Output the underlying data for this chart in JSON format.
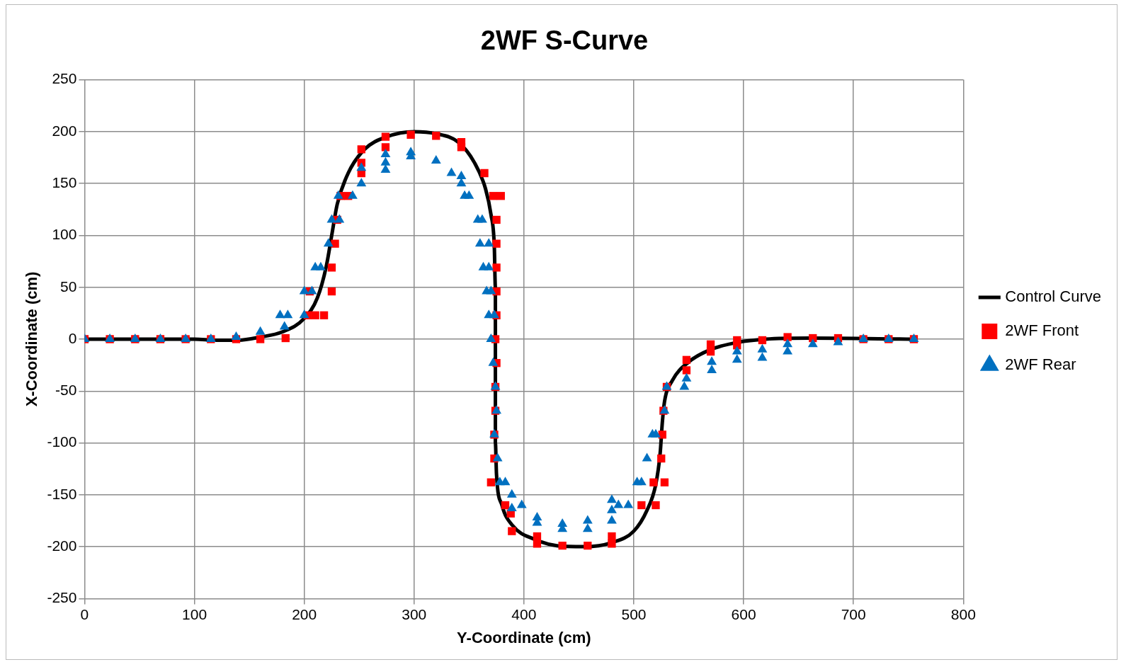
{
  "chart_data": {
    "type": "scatter",
    "title": "2WF S-Curve",
    "xlabel": "Y-Coordinate (cm)",
    "ylabel": "X-Coordinate (cm)",
    "xlim": [
      0,
      800
    ],
    "xticks": [
      0,
      100,
      200,
      300,
      400,
      500,
      600,
      700,
      800
    ],
    "ylim": [
      -250,
      250
    ],
    "yticks": [
      -250,
      -200,
      -150,
      -100,
      -50,
      0,
      50,
      100,
      150,
      200,
      250
    ],
    "grid": true,
    "legend": "right",
    "series": [
      {
        "name": "Control Curve",
        "type": "line",
        "line_style": "solid",
        "marker": "none",
        "color": "#000000",
        "x": [
          0,
          100,
          120,
          140,
          160,
          180,
          200,
          212,
          220,
          225,
          230,
          240,
          255,
          275,
          300,
          320,
          340,
          355,
          365,
          370,
          373,
          374,
          374,
          374,
          375,
          380,
          390,
          410,
          430,
          455,
          480,
          500,
          512,
          520,
          524,
          526,
          528,
          535,
          550,
          570,
          595,
          620,
          660,
          754
        ],
        "values": [
          0,
          0,
          -1,
          -1,
          2,
          7,
          20,
          40,
          70,
          100,
          130,
          160,
          183,
          195,
          200,
          198,
          190,
          170,
          145,
          120,
          90,
          50,
          0,
          -100,
          -130,
          -160,
          -180,
          -193,
          -199,
          -200,
          -196,
          -185,
          -165,
          -140,
          -110,
          -80,
          -60,
          -40,
          -22,
          -10,
          -3,
          0,
          1,
          0
        ]
      },
      {
        "name": "2WF Front",
        "type": "scatter",
        "marker": "square",
        "color": "#ff0000",
        "x": [
          0,
          23,
          46,
          69,
          92,
          115,
          138,
          160,
          183,
          203,
          210,
          218,
          205,
          225,
          225,
          228,
          230,
          233,
          240,
          252,
          252,
          252,
          274,
          274,
          297,
          320,
          343,
          343,
          364,
          372,
          379,
          375,
          375,
          375,
          375,
          375,
          374,
          375,
          374,
          374,
          373,
          373,
          370,
          383,
          388,
          389,
          412,
          412,
          435,
          458,
          480,
          480,
          507,
          520,
          518,
          528,
          525,
          526,
          527,
          530,
          548,
          548,
          570,
          570,
          594,
          594,
          617,
          640,
          663,
          686,
          709,
          732,
          755
        ],
        "values": [
          0,
          0,
          0,
          0,
          0,
          0,
          0,
          0,
          1,
          23,
          23,
          23,
          46,
          46,
          69,
          92,
          115,
          138,
          138,
          160,
          170,
          183,
          185,
          195,
          197,
          196,
          185,
          190,
          160,
          138,
          138,
          115,
          92,
          69,
          46,
          23,
          0,
          -23,
          -46,
          -69,
          -92,
          -115,
          -138,
          -160,
          -168,
          -185,
          -190,
          -197,
          -199,
          -199,
          -190,
          -197,
          -160,
          -160,
          -138,
          -138,
          -115,
          -92,
          -69,
          -46,
          -20,
          -30,
          -5,
          -12,
          -1,
          -6,
          -1,
          2,
          1,
          1,
          0,
          0,
          0
        ]
      },
      {
        "name": "2WF Rear",
        "type": "scatter",
        "marker": "triangle",
        "color": "#0070c0",
        "x": [
          0,
          23,
          46,
          69,
          92,
          115,
          138,
          160,
          182,
          178,
          185,
          200,
          200,
          207,
          210,
          215,
          222,
          225,
          232,
          231,
          244,
          252,
          252,
          274,
          274,
          274,
          297,
          297,
          320,
          334,
          343,
          343,
          346,
          350,
          358,
          362,
          360,
          368,
          363,
          368,
          366,
          370,
          368,
          373,
          370,
          372,
          374,
          375,
          373,
          376,
          378,
          383,
          389,
          389,
          398,
          412,
          412,
          435,
          435,
          458,
          458,
          480,
          480,
          480,
          486,
          495,
          503,
          507,
          512,
          517,
          520,
          528,
          530,
          546,
          548,
          571,
          571,
          594,
          594,
          617,
          617,
          640,
          640,
          663,
          686,
          709,
          732,
          755
        ],
        "values": [
          0,
          0,
          0,
          0,
          0,
          0,
          2,
          7,
          12,
          23,
          23,
          23,
          46,
          46,
          69,
          69,
          92,
          115,
          115,
          138,
          138,
          150,
          165,
          163,
          170,
          178,
          176,
          180,
          172,
          160,
          150,
          157,
          138,
          138,
          115,
          115,
          92,
          92,
          69,
          69,
          46,
          46,
          23,
          23,
          0,
          -23,
          -46,
          -69,
          -92,
          -115,
          -138,
          -138,
          -150,
          -163,
          -160,
          -172,
          -177,
          -178,
          -183,
          -175,
          -183,
          -155,
          -165,
          -175,
          -160,
          -160,
          -138,
          -138,
          -115,
          -92,
          -92,
          -69,
          -46,
          -46,
          -38,
          -22,
          -30,
          -12,
          -20,
          -10,
          -18,
          -5,
          -12,
          -5,
          -3,
          0,
          0,
          0
        ]
      }
    ]
  }
}
